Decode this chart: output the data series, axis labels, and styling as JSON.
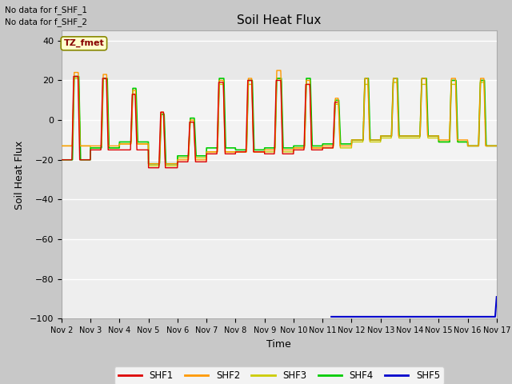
{
  "title": "Soil Heat Flux",
  "ylabel": "Soil Heat Flux",
  "xlabel": "Time",
  "text_no_data_1": "No data for f_SHF_1",
  "text_no_data_2": "No data for f_SHF_2",
  "legend_label": "TZ_fmet",
  "series_labels": [
    "SHF1",
    "SHF2",
    "SHF3",
    "SHF4",
    "SHF5"
  ],
  "series_colors": [
    "#dd0000",
    "#ff9900",
    "#cccc00",
    "#00cc00",
    "#0000cc"
  ],
  "ylim": [
    -100,
    45
  ],
  "yticks": [
    -100,
    -80,
    -60,
    -40,
    -20,
    0,
    20,
    40
  ],
  "xlim": [
    0,
    15
  ],
  "xtick_labels": [
    "Nov 2",
    "Nov 3",
    "Nov 4",
    "Nov 5",
    "Nov 6",
    "Nov 7",
    "Nov 8",
    "Nov 9",
    "Nov 10",
    "Nov 11",
    "Nov 12",
    "Nov 13",
    "Nov 14",
    "Nov 15",
    "Nov 16",
    "Nov 17"
  ],
  "plot_bg_color": "#e8e8e8",
  "fig_bg_color": "#c8c8c8"
}
